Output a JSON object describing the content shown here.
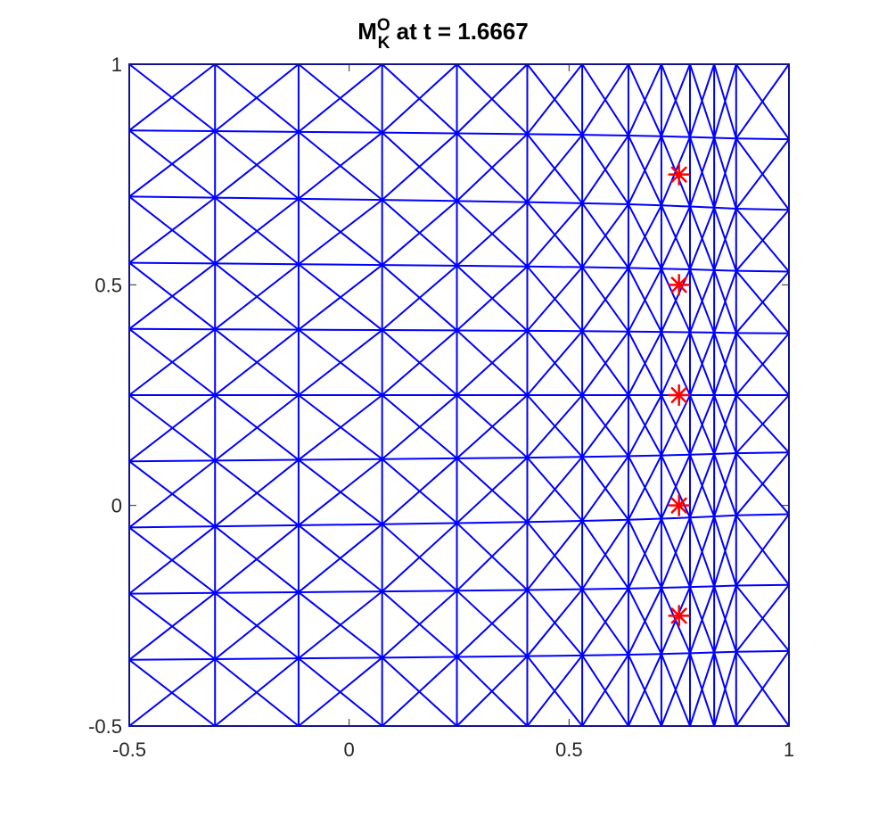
{
  "chart_data": {
    "type": "scatter",
    "title": {
      "base": "M",
      "sup": "O",
      "sub": "K",
      "rest": " at t = 1.6667"
    },
    "xlabel": "",
    "ylabel": "",
    "xlim": [
      -0.5,
      1
    ],
    "ylim": [
      -0.5,
      1
    ],
    "x_ticks": [
      {
        "value": -0.5,
        "label": "-0.5"
      },
      {
        "value": 0,
        "label": "0"
      },
      {
        "value": 0.5,
        "label": "0.5"
      },
      {
        "value": 1,
        "label": "1"
      }
    ],
    "y_ticks": [
      {
        "value": -0.5,
        "label": "-0.5"
      },
      {
        "value": 0,
        "label": "0"
      },
      {
        "value": 0.5,
        "label": "0.5"
      },
      {
        "value": 1,
        "label": "1"
      }
    ],
    "grid": false,
    "mesh": {
      "color": "#0000ff",
      "columns_top": [
        -0.5,
        -0.305,
        -0.115,
        0.075,
        0.245,
        0.405,
        0.53,
        0.635,
        0.71,
        0.775,
        0.83,
        0.88,
        1.0
      ],
      "columns_bottom": [
        -0.5,
        -0.305,
        -0.115,
        0.075,
        0.245,
        0.405,
        0.53,
        0.635,
        0.71,
        0.775,
        0.83,
        0.88,
        1.0
      ],
      "rows_left": [
        -0.5,
        -0.35,
        -0.2,
        -0.05,
        0.1,
        0.25,
        0.4,
        0.55,
        0.7,
        0.85,
        1.0
      ],
      "rows_right": [
        -0.5,
        -0.33,
        -0.18,
        -0.02,
        0.12,
        0.25,
        0.39,
        0.53,
        0.67,
        0.83,
        1.0
      ]
    },
    "markers": {
      "symbol": "asterisk",
      "color": "#ff0000",
      "points": [
        {
          "x": 0.75,
          "y": 0.75
        },
        {
          "x": 0.75,
          "y": 0.5
        },
        {
          "x": 0.75,
          "y": 0.25
        },
        {
          "x": 0.75,
          "y": 0.0
        },
        {
          "x": 0.75,
          "y": -0.25
        }
      ]
    }
  }
}
